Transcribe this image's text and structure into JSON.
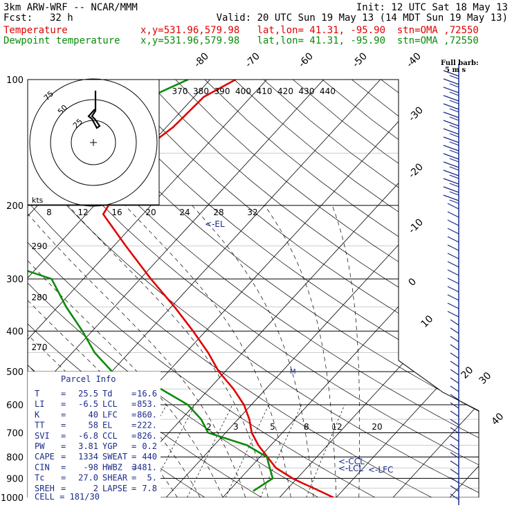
{
  "header": {
    "model": "3km ARW-WRF -- NCAR/MMM",
    "init": "Init: 12 UTC Sat 18 May 13",
    "fcst_label": "Fcst:",
    "fcst_value": "32 h",
    "valid": "Valid: 20 UTC Sun 19 May 13 (14 MDT Sun 19 May 13)"
  },
  "legend": [
    {
      "name": "Temperature",
      "color": "#e00000",
      "info": "x,y=531.96,579.98   lat,lon= 41.31, -95.90  stn=OMA ,72550"
    },
    {
      "name": "Dewpoint temperature",
      "color": "#0a8a0a",
      "info": "x,y=531.96,579.98   lat,lon= 41.31, -95.90  stn=OMA ,72550"
    }
  ],
  "chart_data": {
    "type": "skew-t log-p sounding",
    "pressure_ticks": [
      "100",
      "200",
      "300",
      "400",
      "500",
      "600",
      "700",
      "800",
      "900",
      "1000"
    ],
    "isotherm_labels": [
      "-80",
      "-70",
      "-60",
      "-50",
      "-40",
      "-30",
      "-20",
      "-10",
      "0",
      "10",
      "20",
      "30",
      "40"
    ],
    "theta_e_labels": [
      "370",
      "380",
      "390",
      "400",
      "410",
      "420",
      "430",
      "440"
    ],
    "mixing_ratio_upper": [
      "8",
      "12",
      "16",
      "20",
      "24",
      "28",
      "32"
    ],
    "mixing_ratio_lower": [
      "2",
      "3",
      "5",
      "8",
      "12",
      "20"
    ],
    "left_theta_labels": [
      "290",
      "280",
      "270"
    ],
    "level_markers": [
      "<-EL",
      "<-CCL",
      "<-LCL",
      "<-LFC"
    ],
    "temperature": {
      "name": "Temperature",
      "color": "#e00000",
      "p": [
        1000,
        950,
        925,
        900,
        850,
        800,
        750,
        700,
        650,
        600,
        550,
        500,
        450,
        400,
        350,
        300,
        250,
        210,
        200,
        180,
        150,
        130,
        110,
        100
      ],
      "t": [
        29.5,
        24.5,
        21.8,
        19.2,
        14.6,
        11.3,
        7.8,
        4.6,
        2.0,
        -1.3,
        -5.7,
        -11.1,
        -16.1,
        -22.2,
        -29.4,
        -38.1,
        -47.9,
        -57.0,
        -57.5,
        -59.3,
        -60.6,
        -58.8,
        -58.3,
        -55.5
      ]
    },
    "dewpoint": {
      "name": "Dewpoint temperature",
      "color": "#0a8a0a",
      "p": [
        965,
        900,
        850,
        800,
        750,
        700,
        650,
        600,
        550,
        500,
        450,
        400,
        350,
        300,
        250,
        210,
        200,
        180,
        150,
        130,
        110,
        100
      ],
      "td": [
        14.3,
        15.7,
        13.5,
        11.2,
        5.8,
        -3.1,
        -6.5,
        -11.2,
        -18.5,
        -29.9,
        -36.1,
        -41.7,
        -48.5,
        -55.6,
        -78.5,
        -80.4,
        -79.1,
        -72.6,
        -71.2,
        -72.6,
        -67.8,
        -63.9
      ]
    },
    "wind_barb_label": "Full barb:",
    "wind_barb_unit": "5 m s",
    "hodograph": {
      "unit_label": "kts",
      "ring_labels": [
        "75",
        "50",
        "25"
      ]
    },
    "side_axis_labels": [
      "30",
      "40"
    ]
  },
  "parcel": {
    "title": "Parcel Info",
    "rows": [
      [
        "T",
        "25.5",
        "Td",
        "16.6"
      ],
      [
        "LI",
        "-6.5",
        "LCL",
        "853."
      ],
      [
        "K",
        "40",
        "LFC",
        "860."
      ],
      [
        "TT",
        "58",
        "EL",
        "222."
      ],
      [
        "SVI",
        "-6.8",
        "CCL",
        "826."
      ],
      [
        "PW",
        "3.81",
        "YGP",
        "0.2"
      ],
      [
        "CAPE",
        "1334",
        "SWEAT",
        "440"
      ],
      [
        "CIN",
        "-98",
        "HWBZ",
        "3481."
      ],
      [
        "Tc",
        "27.0",
        "SHEAR",
        "5."
      ],
      [
        "SREH",
        "2",
        "LAPSE",
        "7.8"
      ]
    ],
    "footer": "CELL = 181/30"
  }
}
